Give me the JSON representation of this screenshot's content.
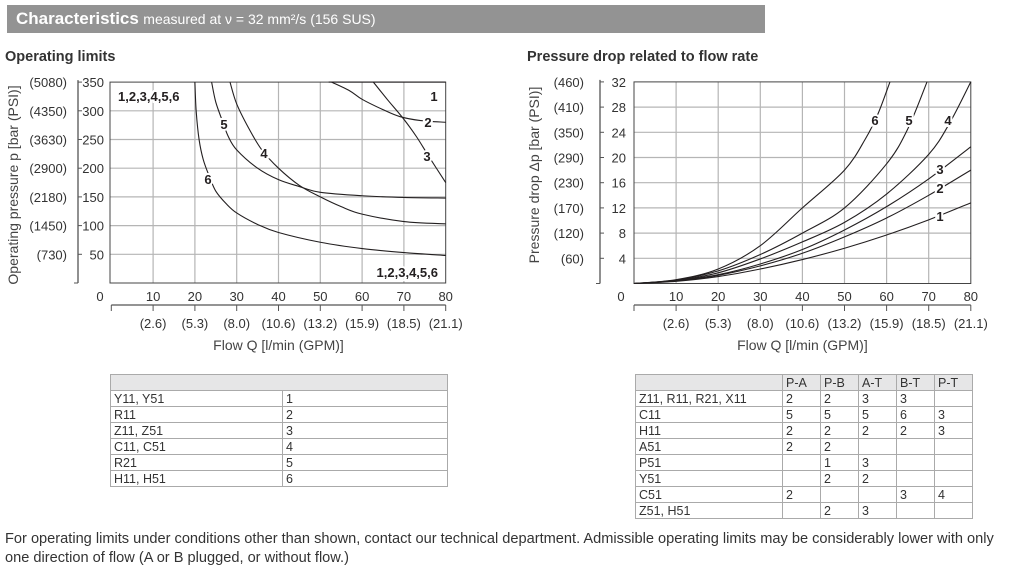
{
  "header": {
    "title": "Characteristics",
    "subtitle": "measured at ν = 32 mm²/s (156 SUS)"
  },
  "sections": {
    "left": "Operating limits",
    "right": "Pressure drop related to flow rate"
  },
  "chart_data": [
    {
      "type": "line",
      "title": "Operating limits",
      "xlabel": "Flow Q [l/min (GPM)]",
      "ylabel": "Operating pressure p [bar (PSI)]",
      "xlim": [
        0,
        80
      ],
      "ylim": [
        0,
        350
      ],
      "grid": true,
      "x_ticks": [
        "0",
        "10",
        "20",
        "30",
        "40",
        "50",
        "60",
        "70",
        "80"
      ],
      "x_ticks_secondary": [
        "(2.6)",
        "(5.3)",
        "(8.0)",
        "(10.6)",
        "(13.2)",
        "(15.9)",
        "(18.5)",
        "(21.1)"
      ],
      "y_ticks": [
        "50",
        "100",
        "150",
        "200",
        "250",
        "300",
        "350"
      ],
      "y_ticks_secondary": [
        "(730)",
        "(1450)",
        "(2180)",
        "(2900)",
        "(3630)",
        "(4350)",
        "(5080)"
      ],
      "annotations": [
        "1,2,3,4,5,6",
        "1,2,3,4,5,6"
      ],
      "series": [
        {
          "name": "1",
          "points": [
            [
              52,
              350
            ],
            [
              80,
              350
            ]
          ]
        },
        {
          "name": "2",
          "points": [
            [
              52.7,
              350
            ],
            [
              57,
              335
            ],
            [
              60,
              320
            ],
            [
              65,
              302
            ],
            [
              69,
              290
            ],
            [
              74,
              283
            ],
            [
              80,
              280
            ]
          ]
        },
        {
          "name": "3",
          "points": [
            [
              62.7,
              350
            ],
            [
              66,
              320
            ],
            [
              69.8,
              287
            ],
            [
              73,
              255
            ],
            [
              76,
              220
            ],
            [
              80,
              175
            ]
          ]
        },
        {
          "name": "4",
          "points": [
            [
              28.4,
              350
            ],
            [
              30,
              312
            ],
            [
              33,
              268
            ],
            [
              36,
              232
            ],
            [
              40,
              200
            ],
            [
              45,
              170
            ],
            [
              50,
              150
            ],
            [
              55,
              133
            ],
            [
              60,
              120
            ],
            [
              70,
              107
            ],
            [
              80,
              103
            ]
          ]
        },
        {
          "name": "5",
          "points": [
            [
              24,
              350
            ],
            [
              25,
              315
            ],
            [
              26.7,
              280
            ],
            [
              28,
              255
            ],
            [
              30,
              232
            ],
            [
              35,
              200
            ],
            [
              40,
              180
            ],
            [
              45,
              168
            ],
            [
              50,
              158
            ],
            [
              60,
              152
            ],
            [
              70,
              149
            ],
            [
              80,
              148
            ]
          ]
        },
        {
          "name": "6",
          "points": [
            [
              20,
              350
            ],
            [
              20.3,
              300
            ],
            [
              21,
              250
            ],
            [
              22,
              215
            ],
            [
              23.5,
              185
            ],
            [
              25,
              160
            ],
            [
              27.5,
              138
            ],
            [
              30,
              122
            ],
            [
              35,
              102
            ],
            [
              40,
              88
            ],
            [
              50,
              71
            ],
            [
              60,
              60
            ],
            [
              70,
              53
            ],
            [
              80,
              48
            ]
          ]
        }
      ]
    },
    {
      "type": "line",
      "title": "Pressure drop related to flow rate",
      "xlabel": "Flow Q [l/min (GPM)]",
      "ylabel": "Pressure drop Δp [bar (PSI)]",
      "xlim": [
        0,
        80
      ],
      "ylim": [
        0,
        32
      ],
      "grid": true,
      "x_ticks": [
        "0",
        "10",
        "20",
        "30",
        "40",
        "50",
        "60",
        "70",
        "80"
      ],
      "x_ticks_secondary": [
        "(2.6)",
        "(5.3)",
        "(8.0)",
        "(10.6)",
        "(13.2)",
        "(15.9)",
        "(18.5)",
        "(21.1)"
      ],
      "y_ticks": [
        "4",
        "8",
        "12",
        "16",
        "20",
        "24",
        "28",
        "32"
      ],
      "y_ticks_secondary": [
        "(60)",
        "(120)",
        "(170)",
        "(230)",
        "(290)",
        "(350)",
        "(410)",
        "(460)"
      ],
      "series": [
        {
          "name": "1",
          "points": [
            [
              0,
              0
            ],
            [
              10,
              0.35
            ],
            [
              20,
              1.1
            ],
            [
              30,
              2.3
            ],
            [
              40,
              3.8
            ],
            [
              50,
              5.6
            ],
            [
              60,
              7.7
            ],
            [
              70,
              10.1
            ],
            [
              80,
              12.8
            ]
          ]
        },
        {
          "name": "2",
          "points": [
            [
              0,
              0
            ],
            [
              10,
              0.4
            ],
            [
              20,
              1.3
            ],
            [
              30,
              2.8
            ],
            [
              40,
              4.8
            ],
            [
              50,
              7.4
            ],
            [
              60,
              10.4
            ],
            [
              70,
              14
            ],
            [
              80,
              18
            ]
          ]
        },
        {
          "name": "3",
          "points": [
            [
              0,
              0
            ],
            [
              10,
              0.45
            ],
            [
              20,
              1.4
            ],
            [
              30,
              3.1
            ],
            [
              40,
              5.4
            ],
            [
              50,
              8.5
            ],
            [
              60,
              12.2
            ],
            [
              70,
              16.6
            ],
            [
              80,
              21.7
            ]
          ]
        },
        {
          "name": "4",
          "points": [
            [
              0,
              0
            ],
            [
              10,
              0.5
            ],
            [
              20,
              1.7
            ],
            [
              30,
              3.9
            ],
            [
              40,
              6.6
            ],
            [
              50,
              9.7
            ],
            [
              60,
              14.2
            ],
            [
              70,
              20.5
            ],
            [
              75,
              25.5
            ],
            [
              80,
              32
            ]
          ]
        },
        {
          "name": "5",
          "points": [
            [
              0,
              0
            ],
            [
              10,
              0.55
            ],
            [
              20,
              2.0
            ],
            [
              30,
              4.6
            ],
            [
              40,
              8.0
            ],
            [
              50,
              12
            ],
            [
              60,
              19
            ],
            [
              65,
              24.5
            ],
            [
              69.6,
              32
            ]
          ]
        },
        {
          "name": "6",
          "points": [
            [
              0,
              0
            ],
            [
              10,
              0.6
            ],
            [
              20,
              2.3
            ],
            [
              30,
              6
            ],
            [
              40,
              12
            ],
            [
              50,
              18
            ],
            [
              55,
              23
            ],
            [
              58,
              27
            ],
            [
              60.8,
              32
            ]
          ]
        }
      ]
    }
  ],
  "table_left": {
    "rows": [
      [
        "Y11, Y51",
        "1"
      ],
      [
        "R11",
        "2"
      ],
      [
        "Z11, Z51",
        "3"
      ],
      [
        "C11, C51",
        "4"
      ],
      [
        "R21",
        "5"
      ],
      [
        "H11, H51",
        "6"
      ]
    ]
  },
  "table_right": {
    "headers": [
      "",
      "P-A",
      "P-B",
      "A-T",
      "B-T",
      "P-T"
    ],
    "rows": [
      [
        "Z11, R11, R21, X11",
        "2",
        "2",
        "3",
        "3",
        ""
      ],
      [
        "C11",
        "5",
        "5",
        "5",
        "6",
        "3"
      ],
      [
        "H11",
        "2",
        "2",
        "2",
        "2",
        "3"
      ],
      [
        "A51",
        "2",
        "2",
        "",
        "",
        ""
      ],
      [
        "P51",
        "",
        "1",
        "3",
        "",
        ""
      ],
      [
        "Y51",
        "",
        "2",
        "2",
        "",
        ""
      ],
      [
        "C51",
        "2",
        "",
        "",
        "3",
        "4"
      ],
      [
        "Z51, H51",
        "",
        "2",
        "3",
        "",
        ""
      ]
    ]
  },
  "footnote": "For operating limits under conditions other than shown, contact our technical department. Admissible operating limits may be considerably lower with only one direction of flow (A or B plugged, or without flow.)"
}
